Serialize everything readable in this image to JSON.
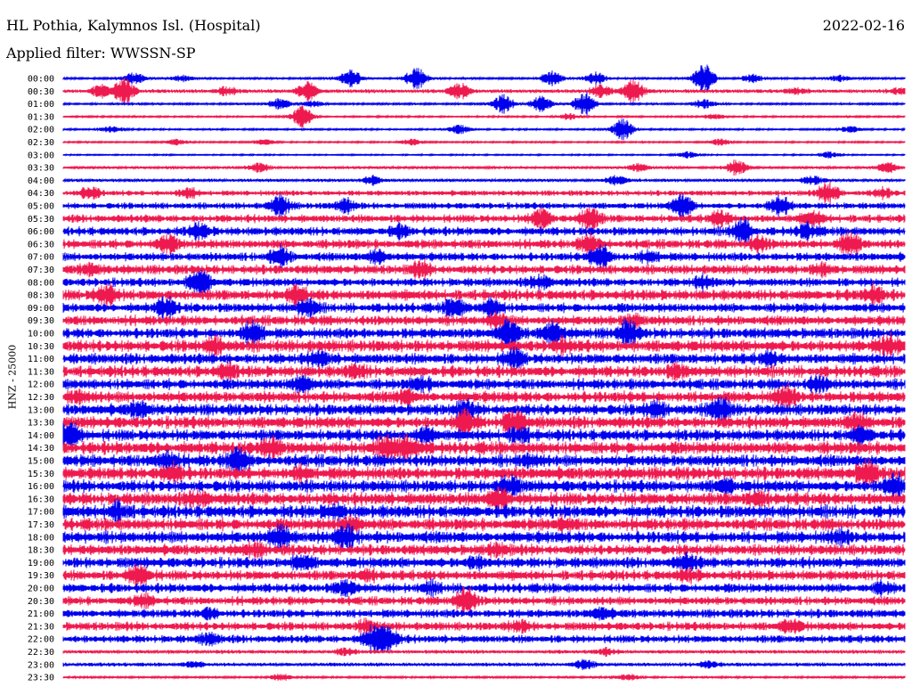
{
  "header": {
    "station": "HL Pothia, Kalymnos Isl. (Hospital)",
    "date": "2022-02-16",
    "filter_label": "Applied filter: WWSSN-SP"
  },
  "chart_data": {
    "type": "line",
    "title": "HL Pothia, Kalymnos Isl. (Hospital)",
    "subtitle": "Applied filter: WWSSN-SP",
    "ylabel": "HNZ - 25000",
    "colors": [
      "#0000ee",
      "#ee1a4f"
    ],
    "grid": false,
    "legend": "none",
    "ylim": [
      -1,
      1
    ],
    "traces": [
      {
        "label": "00:00",
        "base": 0.06,
        "events": [
          [
            0.13,
            0.4
          ],
          [
            0.22,
            0.2
          ],
          [
            0.53,
            0.6
          ],
          [
            0.65,
            0.8
          ],
          [
            0.9,
            0.5
          ],
          [
            0.98,
            0.4
          ],
          [
            1.18,
            1.0
          ],
          [
            1.27,
            0.3
          ],
          [
            1.43,
            0.2
          ]
        ]
      },
      {
        "label": "00:30",
        "base": 0.1,
        "events": [
          [
            0.07,
            0.4
          ],
          [
            0.11,
            1.0
          ],
          [
            0.3,
            0.3
          ],
          [
            0.45,
            0.6
          ],
          [
            0.73,
            0.5
          ],
          [
            0.99,
            0.4
          ],
          [
            1.05,
            0.8
          ],
          [
            1.35,
            0.2
          ],
          [
            1.54,
            0.2
          ]
        ]
      },
      {
        "label": "01:00",
        "base": 0.06,
        "events": [
          [
            0.4,
            0.4
          ],
          [
            0.46,
            0.2
          ],
          [
            0.81,
            0.6
          ],
          [
            0.88,
            0.5
          ],
          [
            0.96,
            0.8
          ],
          [
            1.18,
            0.3
          ]
        ]
      },
      {
        "label": "01:30",
        "base": 0.05,
        "events": [
          [
            0.44,
            0.7
          ],
          [
            0.93,
            0.2
          ],
          [
            1.2,
            0.2
          ]
        ]
      },
      {
        "label": "02:00",
        "base": 0.05,
        "events": [
          [
            0.09,
            0.2
          ],
          [
            0.73,
            0.3
          ],
          [
            1.03,
            0.7
          ],
          [
            1.45,
            0.2
          ]
        ]
      },
      {
        "label": "02:30",
        "base": 0.05,
        "events": [
          [
            0.21,
            0.2
          ],
          [
            0.37,
            0.2
          ],
          [
            0.64,
            0.2
          ],
          [
            1.21,
            0.2
          ]
        ]
      },
      {
        "label": "03:00",
        "base": 0.04,
        "events": [
          [
            1.15,
            0.2
          ],
          [
            1.41,
            0.2
          ]
        ]
      },
      {
        "label": "03:30",
        "base": 0.07,
        "events": [
          [
            0.36,
            0.3
          ],
          [
            1.06,
            0.3
          ],
          [
            1.24,
            0.5
          ],
          [
            1.52,
            0.4
          ]
        ]
      },
      {
        "label": "04:00",
        "base": 0.08,
        "events": [
          [
            0.57,
            0.3
          ],
          [
            1.02,
            0.3
          ],
          [
            1.38,
            0.3
          ]
        ]
      },
      {
        "label": "04:30",
        "base": 0.15,
        "events": [
          [
            0.05,
            0.4
          ],
          [
            0.23,
            0.3
          ],
          [
            1.41,
            0.7
          ],
          [
            1.51,
            0.3
          ]
        ]
      },
      {
        "label": "05:00",
        "base": 0.18,
        "events": [
          [
            0.4,
            0.6
          ],
          [
            0.52,
            0.4
          ],
          [
            1.14,
            0.7
          ],
          [
            1.32,
            0.7
          ]
        ]
      },
      {
        "label": "05:30",
        "base": 0.22,
        "events": [
          [
            0.88,
            0.6
          ],
          [
            0.97,
            0.7
          ],
          [
            1.21,
            0.4
          ],
          [
            1.38,
            0.4
          ]
        ]
      },
      {
        "label": "06:00",
        "base": 0.24,
        "events": [
          [
            0.25,
            0.4
          ],
          [
            0.62,
            0.3
          ],
          [
            1.25,
            0.8
          ],
          [
            1.37,
            0.4
          ]
        ]
      },
      {
        "label": "06:30",
        "base": 0.26,
        "events": [
          [
            0.19,
            0.5
          ],
          [
            0.97,
            0.5
          ],
          [
            1.28,
            0.4
          ],
          [
            1.45,
            0.6
          ]
        ]
      },
      {
        "label": "07:00",
        "base": 0.24,
        "events": [
          [
            0.4,
            0.6
          ],
          [
            0.58,
            0.4
          ],
          [
            0.99,
            0.8
          ],
          [
            1.08,
            0.3
          ]
        ]
      },
      {
        "label": "07:30",
        "base": 0.26,
        "events": [
          [
            0.05,
            0.3
          ],
          [
            0.66,
            0.4
          ],
          [
            1.4,
            0.3
          ]
        ]
      },
      {
        "label": "08:00",
        "base": 0.24,
        "events": [
          [
            0.25,
            0.8
          ],
          [
            0.88,
            0.4
          ],
          [
            1.18,
            0.3
          ]
        ]
      },
      {
        "label": "08:30",
        "base": 0.3,
        "events": [
          [
            0.08,
            0.6
          ],
          [
            0.43,
            0.4
          ],
          [
            1.49,
            0.5
          ]
        ]
      },
      {
        "label": "09:00",
        "base": 0.26,
        "events": [
          [
            0.19,
            0.6
          ],
          [
            0.45,
            0.5
          ],
          [
            0.72,
            0.5
          ],
          [
            0.79,
            0.5
          ]
        ]
      },
      {
        "label": "09:30",
        "base": 0.28,
        "events": [
          [
            0.8,
            0.4
          ],
          [
            1.05,
            0.3
          ]
        ]
      },
      {
        "label": "10:00",
        "base": 0.3,
        "events": [
          [
            0.35,
            0.7
          ],
          [
            0.82,
            0.7
          ],
          [
            0.9,
            0.6
          ],
          [
            1.04,
            0.7
          ]
        ]
      },
      {
        "label": "10:30",
        "base": 0.34,
        "events": [
          [
            0.28,
            0.4
          ],
          [
            0.92,
            0.3
          ],
          [
            1.52,
            0.6
          ]
        ]
      },
      {
        "label": "11:00",
        "base": 0.3,
        "events": [
          [
            0.47,
            0.4
          ],
          [
            0.83,
            0.5
          ],
          [
            1.3,
            0.3
          ]
        ]
      },
      {
        "label": "11:30",
        "base": 0.32,
        "events": [
          [
            0.3,
            0.4
          ],
          [
            0.54,
            0.3
          ],
          [
            1.13,
            0.3
          ]
        ]
      },
      {
        "label": "12:00",
        "base": 0.3,
        "events": [
          [
            0.44,
            0.5
          ],
          [
            0.66,
            0.3
          ],
          [
            1.39,
            0.4
          ]
        ]
      },
      {
        "label": "12:30",
        "base": 0.32,
        "events": [
          [
            0.03,
            0.3
          ],
          [
            0.63,
            0.3
          ],
          [
            1.33,
            0.6
          ]
        ]
      },
      {
        "label": "13:00",
        "base": 0.32,
        "events": [
          [
            0.14,
            0.4
          ],
          [
            0.74,
            0.4
          ],
          [
            1.09,
            0.4
          ],
          [
            1.21,
            0.7
          ]
        ]
      },
      {
        "label": "13:30",
        "base": 0.34,
        "events": [
          [
            0.74,
            0.7
          ],
          [
            0.83,
            0.7
          ],
          [
            1.46,
            0.4
          ]
        ]
      },
      {
        "label": "14:00",
        "base": 0.32,
        "events": [
          [
            0.01,
            0.8
          ],
          [
            0.67,
            0.4
          ],
          [
            0.84,
            0.4
          ],
          [
            1.47,
            0.4
          ]
        ]
      },
      {
        "label": "14:30",
        "base": 0.36,
        "events": [
          [
            0.38,
            0.5
          ],
          [
            0.6,
            0.9
          ],
          [
            0.64,
            0.6
          ]
        ]
      },
      {
        "label": "15:00",
        "base": 0.34,
        "events": [
          [
            0.19,
            0.5
          ],
          [
            0.32,
            0.7
          ],
          [
            0.86,
            0.3
          ]
        ]
      },
      {
        "label": "15:30",
        "base": 0.36,
        "events": [
          [
            0.2,
            0.6
          ],
          [
            0.44,
            0.3
          ],
          [
            1.48,
            0.7
          ]
        ]
      },
      {
        "label": "16:00",
        "base": 0.34,
        "events": [
          [
            0.82,
            0.6
          ],
          [
            1.22,
            0.3
          ],
          [
            1.53,
            0.8
          ]
        ]
      },
      {
        "label": "16:30",
        "base": 0.36,
        "events": [
          [
            0.25,
            0.4
          ],
          [
            0.8,
            0.6
          ],
          [
            1.28,
            0.4
          ]
        ]
      },
      {
        "label": "17:00",
        "base": 0.36,
        "events": [
          [
            0.1,
            0.5
          ],
          [
            0.5,
            0.3
          ]
        ]
      },
      {
        "label": "17:30",
        "base": 0.34,
        "events": [
          [
            0.53,
            0.4
          ],
          [
            0.92,
            0.3
          ]
        ]
      },
      {
        "label": "18:00",
        "base": 0.34,
        "events": [
          [
            0.4,
            0.7
          ],
          [
            0.52,
            0.6
          ],
          [
            1.43,
            0.3
          ]
        ]
      },
      {
        "label": "18:30",
        "base": 0.3,
        "events": [
          [
            0.35,
            0.3
          ],
          [
            0.8,
            0.3
          ]
        ]
      },
      {
        "label": "19:00",
        "base": 0.3,
        "events": [
          [
            0.44,
            0.4
          ],
          [
            0.76,
            0.3
          ],
          [
            1.15,
            0.4
          ]
        ]
      },
      {
        "label": "19:30",
        "base": 0.28,
        "events": [
          [
            0.14,
            0.6
          ],
          [
            0.56,
            0.3
          ],
          [
            1.15,
            0.3
          ]
        ]
      },
      {
        "label": "20:00",
        "base": 0.26,
        "events": [
          [
            0.52,
            0.4
          ],
          [
            0.68,
            0.3
          ],
          [
            1.51,
            0.3
          ]
        ]
      },
      {
        "label": "20:30",
        "base": 0.24,
        "events": [
          [
            0.74,
            1.0
          ],
          [
            0.15,
            0.3
          ]
        ]
      },
      {
        "label": "21:00",
        "base": 0.24,
        "events": [
          [
            0.27,
            0.3
          ],
          [
            0.99,
            0.3
          ]
        ]
      },
      {
        "label": "21:30",
        "base": 0.24,
        "events": [
          [
            0.56,
            0.3
          ],
          [
            0.84,
            0.3
          ],
          [
            1.34,
            0.4
          ]
        ]
      },
      {
        "label": "22:00",
        "base": 0.22,
        "events": [
          [
            0.57,
            0.9
          ],
          [
            0.6,
            0.6
          ],
          [
            0.27,
            0.3
          ]
        ]
      },
      {
        "label": "22:30",
        "base": 0.1,
        "events": [
          [
            0.52,
            0.2
          ],
          [
            1.0,
            0.2
          ]
        ]
      },
      {
        "label": "23:00",
        "base": 0.1,
        "events": [
          [
            0.24,
            0.2
          ],
          [
            0.96,
            0.3
          ],
          [
            1.19,
            0.2
          ]
        ]
      },
      {
        "label": "23:30",
        "base": 0.06,
        "events": [
          [
            0.4,
            0.2
          ],
          [
            1.04,
            0.2
          ]
        ]
      }
    ]
  }
}
